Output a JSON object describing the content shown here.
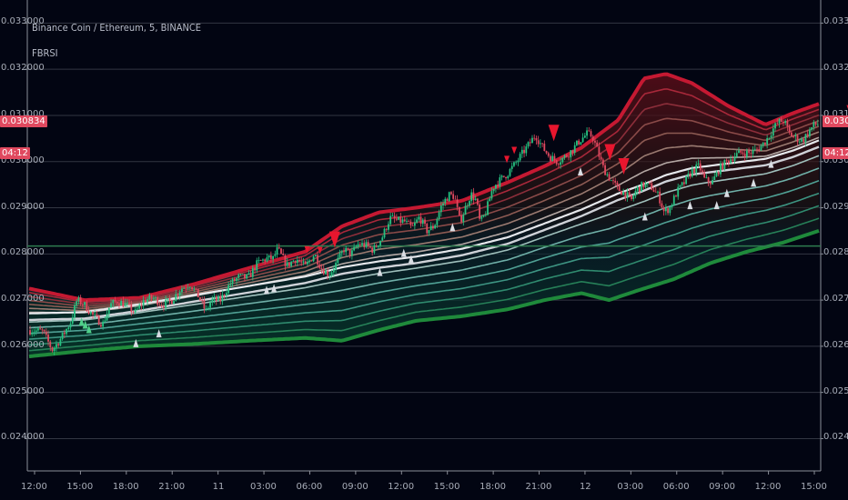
{
  "header": {
    "symbol_line": "Binance Coin / Ethereum, 5, BINANCE",
    "indicator_name": "FBRSI"
  },
  "colors": {
    "background": "#020512",
    "grid": "#5a5e6a",
    "support_line": "#2e7d4f",
    "price_tag": "#e0495f",
    "up_candle": "#26c281",
    "down_candle": "#e0495f",
    "sell_marker": "#e8162e",
    "buy_marker": "#d9dde3",
    "upper_band": "#c51932",
    "lower_band": "#1f8a3b",
    "mid_band": "#cfd2d8"
  },
  "chart_data": {
    "type": "line",
    "ylim": [
      0.0233,
      0.0335
    ],
    "yticks": [
      "0.024000",
      "0.025000",
      "0.026000",
      "0.027000",
      "0.028000",
      "0.029000",
      "0.030000",
      "0.031000",
      "0.032000",
      "0.033000"
    ],
    "ytick_values": [
      0.024,
      0.025,
      0.026,
      0.027,
      0.028,
      0.029,
      0.03,
      0.031,
      0.032,
      0.033
    ],
    "xticks": [
      "12:00",
      "15:00",
      "18:00",
      "21:00",
      "11",
      "03:00",
      "06:00",
      "09:00",
      "12:00",
      "15:00",
      "18:00",
      "21:00",
      "12",
      "03:00",
      "06:00",
      "09:00",
      "12:00",
      "15:00"
    ],
    "last_price": "0.030834",
    "countdown": "04:12",
    "support_level": 0.02817,
    "price_path": [
      [
        0,
        0.02635
      ],
      [
        15,
        0.02632
      ],
      [
        25,
        0.02592
      ],
      [
        35,
        0.02618
      ],
      [
        45,
        0.02652
      ],
      [
        52,
        0.027
      ],
      [
        60,
        0.0269
      ],
      [
        70,
        0.02665
      ],
      [
        80,
        0.02648
      ],
      [
        88,
        0.0269
      ],
      [
        96,
        0.02698
      ],
      [
        105,
        0.0269
      ],
      [
        115,
        0.02672
      ],
      [
        125,
        0.027
      ],
      [
        135,
        0.02705
      ],
      [
        145,
        0.0269
      ],
      [
        155,
        0.027
      ],
      [
        165,
        0.02725
      ],
      [
        175,
        0.02735
      ],
      [
        185,
        0.02705
      ],
      [
        192,
        0.02675
      ],
      [
        198,
        0.027
      ],
      [
        208,
        0.027
      ],
      [
        218,
        0.02735
      ],
      [
        228,
        0.0275
      ],
      [
        238,
        0.02748
      ],
      [
        248,
        0.0278
      ],
      [
        258,
        0.0279
      ],
      [
        265,
        0.0279
      ],
      [
        270,
        0.0281
      ],
      [
        280,
        0.02775
      ],
      [
        290,
        0.0279
      ],
      [
        300,
        0.02772
      ],
      [
        310,
        0.028
      ],
      [
        318,
        0.02768
      ],
      [
        326,
        0.02755
      ],
      [
        334,
        0.0278
      ],
      [
        342,
        0.0281
      ],
      [
        350,
        0.028
      ],
      [
        358,
        0.02822
      ],
      [
        366,
        0.02818
      ],
      [
        374,
        0.02808
      ],
      [
        384,
        0.02838
      ],
      [
        392,
        0.02878
      ],
      [
        400,
        0.02872
      ],
      [
        408,
        0.0287
      ],
      [
        416,
        0.02855
      ],
      [
        424,
        0.0288
      ],
      [
        432,
        0.0285
      ],
      [
        440,
        0.0286
      ],
      [
        448,
        0.02905
      ],
      [
        456,
        0.02928
      ],
      [
        462,
        0.02925
      ],
      [
        468,
        0.0287
      ],
      [
        474,
        0.029
      ],
      [
        480,
        0.0293
      ],
      [
        486,
        0.02915
      ],
      [
        490,
        0.02865
      ],
      [
        496,
        0.0289
      ],
      [
        504,
        0.02945
      ],
      [
        512,
        0.0296
      ],
      [
        520,
        0.02975
      ],
      [
        528,
        0.02995
      ],
      [
        536,
        0.03018
      ],
      [
        544,
        0.0304
      ],
      [
        550,
        0.03058
      ],
      [
        558,
        0.0303
      ],
      [
        566,
        0.0301
      ],
      [
        574,
        0.03
      ],
      [
        582,
        0.0301
      ],
      [
        590,
        0.03025
      ],
      [
        598,
        0.03045
      ],
      [
        606,
        0.0306
      ],
      [
        612,
        0.03055
      ],
      [
        618,
        0.0302
      ],
      [
        624,
        0.02985
      ],
      [
        632,
        0.0296
      ],
      [
        640,
        0.0294
      ],
      [
        648,
        0.0293
      ],
      [
        654,
        0.02915
      ],
      [
        660,
        0.0294
      ],
      [
        668,
        0.0295
      ],
      [
        676,
        0.02945
      ],
      [
        684,
        0.02925
      ],
      [
        690,
        0.0289
      ],
      [
        696,
        0.029
      ],
      [
        704,
        0.02935
      ],
      [
        712,
        0.02955
      ],
      [
        720,
        0.0298
      ],
      [
        728,
        0.0299
      ],
      [
        734,
        0.0296
      ],
      [
        742,
        0.02955
      ],
      [
        750,
        0.02985
      ],
      [
        758,
        0.03
      ],
      [
        766,
        0.03012
      ],
      [
        774,
        0.0302
      ],
      [
        782,
        0.03018
      ],
      [
        790,
        0.03025
      ],
      [
        796,
        0.03035
      ],
      [
        802,
        0.0305
      ],
      [
        808,
        0.0307
      ],
      [
        814,
        0.03086
      ],
      [
        820,
        0.03089
      ],
      [
        826,
        0.0306
      ],
      [
        834,
        0.0305
      ],
      [
        840,
        0.03045
      ],
      [
        846,
        0.03062
      ],
      [
        852,
        0.03078
      ],
      [
        858,
        0.03083
      ]
    ],
    "upper_band_path": [
      [
        0,
        0.02725
      ],
      [
        60,
        0.027
      ],
      [
        120,
        0.02705
      ],
      [
        180,
        0.02735
      ],
      [
        240,
        0.0277
      ],
      [
        300,
        0.02805
      ],
      [
        340,
        0.0286
      ],
      [
        380,
        0.0289
      ],
      [
        420,
        0.029
      ],
      [
        470,
        0.02915
      ],
      [
        520,
        0.02955
      ],
      [
        560,
        0.0299
      ],
      [
        600,
        0.0303
      ],
      [
        640,
        0.0309
      ],
      [
        668,
        0.0318
      ],
      [
        692,
        0.0319
      ],
      [
        720,
        0.0317
      ],
      [
        760,
        0.0312
      ],
      [
        800,
        0.0308
      ],
      [
        830,
        0.03105
      ],
      [
        858,
        0.03125
      ]
    ],
    "mid_band_path": [
      [
        0,
        0.02665
      ],
      [
        60,
        0.02668
      ],
      [
        120,
        0.02685
      ],
      [
        180,
        0.02705
      ],
      [
        240,
        0.02725
      ],
      [
        300,
        0.02745
      ],
      [
        340,
        0.02765
      ],
      [
        380,
        0.02778
      ],
      [
        420,
        0.02788
      ],
      [
        470,
        0.02805
      ],
      [
        520,
        0.0283
      ],
      [
        560,
        0.0286
      ],
      [
        600,
        0.0289
      ],
      [
        640,
        0.02925
      ],
      [
        668,
        0.02945
      ],
      [
        692,
        0.02965
      ],
      [
        720,
        0.0298
      ],
      [
        760,
        0.0299
      ],
      [
        800,
        0.03
      ],
      [
        830,
        0.03018
      ],
      [
        858,
        0.0304
      ]
    ],
    "lower_band_path": [
      [
        0,
        0.02578
      ],
      [
        60,
        0.0259
      ],
      [
        120,
        0.026
      ],
      [
        180,
        0.02605
      ],
      [
        240,
        0.02612
      ],
      [
        300,
        0.02618
      ],
      [
        340,
        0.02612
      ],
      [
        380,
        0.02635
      ],
      [
        420,
        0.02655
      ],
      [
        470,
        0.02665
      ],
      [
        520,
        0.0268
      ],
      [
        560,
        0.027
      ],
      [
        600,
        0.02715
      ],
      [
        630,
        0.027
      ],
      [
        660,
        0.0272
      ],
      [
        700,
        0.02745
      ],
      [
        740,
        0.0278
      ],
      [
        780,
        0.02805
      ],
      [
        820,
        0.02825
      ],
      [
        858,
        0.0285
      ]
    ],
    "sell_markers": [
      {
        "x": 332,
        "size": "large"
      },
      {
        "x": 570,
        "size": "large"
      },
      {
        "x": 631,
        "size": "large"
      },
      {
        "x": 646,
        "size": "large"
      },
      {
        "x": 302,
        "size": "small"
      },
      {
        "x": 316,
        "size": "small"
      },
      {
        "x": 519,
        "size": "small"
      },
      {
        "x": 527,
        "size": "small"
      },
      {
        "x": 891,
        "size": "small"
      }
    ],
    "buy_markers_white": [
      116,
      141,
      258,
      266,
      381,
      407,
      415,
      460,
      599,
      669,
      718,
      747,
      758,
      787,
      806
    ],
    "buy_markers_green": [
      57,
      61,
      65
    ]
  }
}
